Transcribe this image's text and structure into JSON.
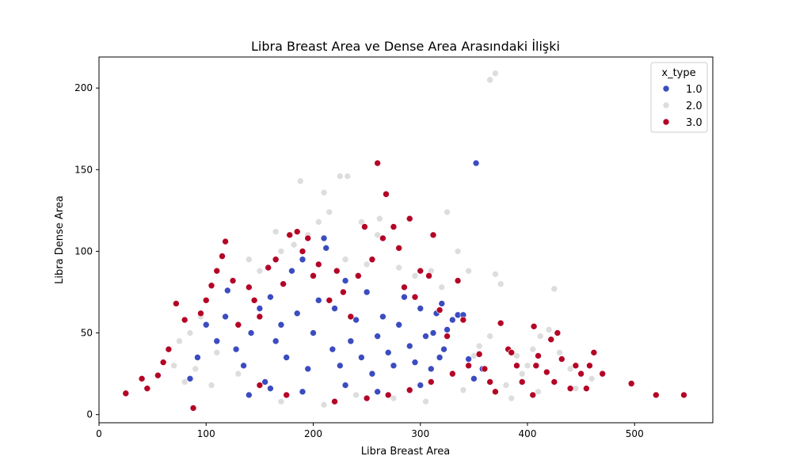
{
  "chart_data": {
    "type": "scatter",
    "title": "Libra Breast Area ve Dense Area Arasındaki İlişki",
    "xlabel": "Libra Breast Area",
    "ylabel": "Libra Dense Area",
    "xlim": [
      0,
      573
    ],
    "ylim": [
      -5,
      219
    ],
    "xticks": [
      "0",
      "100",
      "200",
      "300",
      "400",
      "500"
    ],
    "yticks": [
      "0",
      "50",
      "100",
      "150",
      "200"
    ],
    "legend": {
      "title": "x_type",
      "placement": "top-right"
    },
    "grid": false,
    "series": [
      {
        "name": "1.0",
        "color": "#3b4cc0",
        "points": [
          [
            85,
            22
          ],
          [
            92,
            35
          ],
          [
            100,
            55
          ],
          [
            110,
            45
          ],
          [
            118,
            60
          ],
          [
            120,
            76
          ],
          [
            128,
            40
          ],
          [
            135,
            30
          ],
          [
            142,
            50
          ],
          [
            150,
            65
          ],
          [
            155,
            20
          ],
          [
            160,
            72
          ],
          [
            165,
            45
          ],
          [
            170,
            55
          ],
          [
            175,
            35
          ],
          [
            180,
            88
          ],
          [
            185,
            62
          ],
          [
            190,
            95
          ],
          [
            195,
            28
          ],
          [
            200,
            50
          ],
          [
            205,
            70
          ],
          [
            210,
            108
          ],
          [
            212,
            102
          ],
          [
            218,
            40
          ],
          [
            220,
            65
          ],
          [
            225,
            30
          ],
          [
            230,
            82
          ],
          [
            235,
            45
          ],
          [
            240,
            58
          ],
          [
            245,
            35
          ],
          [
            250,
            75
          ],
          [
            255,
            25
          ],
          [
            260,
            48
          ],
          [
            265,
            60
          ],
          [
            270,
            38
          ],
          [
            275,
            30
          ],
          [
            280,
            55
          ],
          [
            285,
            72
          ],
          [
            290,
            42
          ],
          [
            295,
            32
          ],
          [
            300,
            65
          ],
          [
            305,
            48
          ],
          [
            310,
            28
          ],
          [
            312,
            50
          ],
          [
            315,
            62
          ],
          [
            318,
            35
          ],
          [
            320,
            68
          ],
          [
            322,
            40
          ],
          [
            325,
            52
          ],
          [
            330,
            58
          ],
          [
            335,
            61
          ],
          [
            340,
            61
          ],
          [
            345,
            34
          ],
          [
            350,
            22
          ],
          [
            352,
            154
          ],
          [
            358,
            28
          ],
          [
            140,
            12
          ],
          [
            160,
            16
          ],
          [
            190,
            14
          ],
          [
            230,
            18
          ],
          [
            260,
            14
          ],
          [
            300,
            18
          ]
        ]
      },
      {
        "name": "2.0",
        "color": "#dddddd",
        "points": [
          [
            365,
            205
          ],
          [
            370,
            209
          ],
          [
            210,
            136
          ],
          [
            225,
            146
          ],
          [
            232,
            146
          ],
          [
            188,
            143
          ],
          [
            268,
            135
          ],
          [
            205,
            118
          ],
          [
            215,
            124
          ],
          [
            245,
            118
          ],
          [
            262,
            120
          ],
          [
            325,
            124
          ],
          [
            165,
            112
          ],
          [
            260,
            110
          ],
          [
            335,
            100
          ],
          [
            345,
            88
          ],
          [
            370,
            86
          ],
          [
            375,
            80
          ],
          [
            412,
            48
          ],
          [
            420,
            52
          ],
          [
            425,
            77
          ],
          [
            430,
            38
          ],
          [
            440,
            28
          ],
          [
            445,
            16
          ],
          [
            460,
            22
          ],
          [
            385,
            10
          ],
          [
            380,
            18
          ],
          [
            395,
            25
          ],
          [
            400,
            30
          ],
          [
            410,
            14
          ],
          [
            405,
            40
          ],
          [
            390,
            36
          ],
          [
            140,
            95
          ],
          [
            150,
            88
          ],
          [
            170,
            100
          ],
          [
            182,
            104
          ],
          [
            195,
            110
          ],
          [
            70,
            30
          ],
          [
            75,
            45
          ],
          [
            80,
            20
          ],
          [
            85,
            50
          ],
          [
            90,
            28
          ],
          [
            95,
            60
          ],
          [
            105,
            18
          ],
          [
            110,
            38
          ],
          [
            130,
            25
          ],
          [
            170,
            8
          ],
          [
            210,
            6
          ],
          [
            240,
            12
          ],
          [
            275,
            10
          ],
          [
            305,
            8
          ],
          [
            340,
            15
          ],
          [
            350,
            36
          ],
          [
            355,
            42
          ],
          [
            365,
            48
          ],
          [
            230,
            95
          ],
          [
            250,
            92
          ],
          [
            280,
            90
          ],
          [
            295,
            85
          ],
          [
            310,
            88
          ],
          [
            320,
            78
          ]
        ]
      },
      {
        "name": "3.0",
        "color": "#b40426",
        "points": [
          [
            25,
            13
          ],
          [
            40,
            22
          ],
          [
            45,
            16
          ],
          [
            55,
            24
          ],
          [
            60,
            32
          ],
          [
            65,
            40
          ],
          [
            72,
            68
          ],
          [
            80,
            58
          ],
          [
            88,
            4
          ],
          [
            95,
            62
          ],
          [
            100,
            70
          ],
          [
            105,
            79
          ],
          [
            110,
            88
          ],
          [
            115,
            97
          ],
          [
            118,
            106
          ],
          [
            125,
            82
          ],
          [
            130,
            55
          ],
          [
            140,
            78
          ],
          [
            145,
            70
          ],
          [
            150,
            60
          ],
          [
            158,
            90
          ],
          [
            165,
            95
          ],
          [
            172,
            80
          ],
          [
            178,
            110
          ],
          [
            185,
            112
          ],
          [
            190,
            100
          ],
          [
            195,
            108
          ],
          [
            200,
            85
          ],
          [
            205,
            92
          ],
          [
            215,
            70
          ],
          [
            222,
            88
          ],
          [
            228,
            75
          ],
          [
            235,
            60
          ],
          [
            242,
            85
          ],
          [
            248,
            115
          ],
          [
            255,
            95
          ],
          [
            260,
            154
          ],
          [
            265,
            108
          ],
          [
            268,
            135
          ],
          [
            275,
            115
          ],
          [
            280,
            102
          ],
          [
            285,
            78
          ],
          [
            290,
            120
          ],
          [
            295,
            72
          ],
          [
            300,
            88
          ],
          [
            308,
            85
          ],
          [
            312,
            110
          ],
          [
            318,
            64
          ],
          [
            325,
            48
          ],
          [
            335,
            82
          ],
          [
            340,
            58
          ],
          [
            345,
            30
          ],
          [
            355,
            37
          ],
          [
            360,
            28
          ],
          [
            365,
            20
          ],
          [
            370,
            14
          ],
          [
            375,
            56
          ],
          [
            382,
            40
          ],
          [
            385,
            38
          ],
          [
            390,
            30
          ],
          [
            395,
            20
          ],
          [
            405,
            12
          ],
          [
            406,
            54
          ],
          [
            408,
            30
          ],
          [
            410,
            36
          ],
          [
            418,
            26
          ],
          [
            422,
            46
          ],
          [
            425,
            20
          ],
          [
            428,
            50
          ],
          [
            432,
            34
          ],
          [
            440,
            16
          ],
          [
            445,
            30
          ],
          [
            450,
            25
          ],
          [
            455,
            16
          ],
          [
            458,
            30
          ],
          [
            462,
            38
          ],
          [
            470,
            25
          ],
          [
            497,
            19
          ],
          [
            520,
            12
          ],
          [
            546,
            12
          ],
          [
            150,
            18
          ],
          [
            175,
            12
          ],
          [
            220,
            8
          ],
          [
            250,
            10
          ],
          [
            270,
            12
          ],
          [
            290,
            15
          ],
          [
            310,
            20
          ],
          [
            330,
            25
          ]
        ]
      }
    ]
  }
}
